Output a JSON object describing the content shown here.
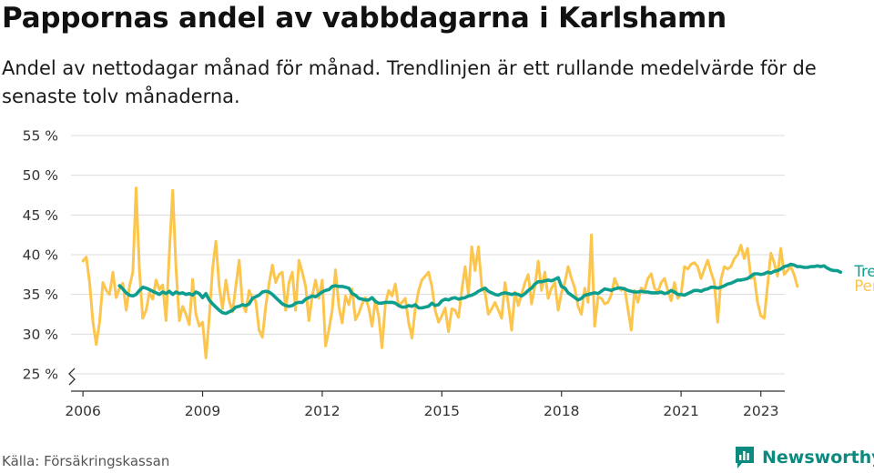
{
  "title": "Pappornas andel av vabbdagarna i Karlshamn",
  "subtitle": "Andel av nettodagar månad för månad. Trendlinjen är ett rullande medelvärde för de senaste tolv månaderna.",
  "source": "Källa: Försäkringskassan",
  "brand": "Newsworthy",
  "colors": {
    "trend": "#0e9e8e",
    "monthly": "#fcc54d",
    "brand": "#0b8a80"
  },
  "chart_data": {
    "type": "line",
    "ylim": [
      25,
      55
    ],
    "yticks": [
      25,
      30,
      35,
      40,
      45,
      50,
      55
    ],
    "ytick_labels": [
      "25 %",
      "30 %",
      "35 %",
      "40 %",
      "45 %",
      "50 %",
      "55 %"
    ],
    "xlim": [
      2005.7,
      2023.6
    ],
    "xticks": [
      2006,
      2009,
      2012,
      2015,
      2018,
      2021,
      2023
    ],
    "xtick_labels": [
      "2006",
      "2009",
      "2012",
      "2015",
      "2018",
      "2021",
      "2023"
    ],
    "grid": true,
    "series": [
      {
        "name": "Per månad",
        "start": 2006.0,
        "step": 0.0833333,
        "values": [
          39.2,
          39.7,
          36.5,
          31.5,
          28.7,
          31.5,
          36.5,
          35.5,
          35.0,
          37.8,
          34.6,
          35.8,
          36.4,
          33.0,
          36.0,
          37.8,
          48.4,
          38.0,
          32.0,
          33.0,
          35.2,
          34.4,
          36.8,
          35.6,
          36.2,
          31.7,
          40.2,
          48.1,
          38.4,
          31.7,
          33.5,
          32.5,
          31.2,
          36.9,
          32.5,
          31.0,
          31.5,
          27.0,
          32.0,
          38.2,
          41.7,
          36.0,
          33.2,
          36.8,
          34.2,
          32.8,
          36.0,
          39.3,
          33.8,
          32.8,
          35.5,
          34.5,
          34.2,
          30.5,
          29.6,
          33.5,
          36.3,
          38.7,
          36.5,
          37.5,
          37.8,
          33.0,
          36.5,
          37.8,
          33.0,
          39.3,
          37.8,
          36.0,
          31.7,
          34.8,
          36.8,
          34.5,
          36.8,
          28.5,
          30.5,
          33.0,
          38.1,
          33.5,
          31.4,
          34.8,
          33.7,
          35.7,
          31.8,
          32.6,
          33.8,
          34.6,
          33.3,
          31.0,
          34.3,
          32.2,
          28.3,
          33.8,
          35.5,
          34.8,
          36.3,
          33.5,
          34.0,
          34.5,
          31.5,
          29.5,
          33.2,
          35.5,
          36.8,
          37.3,
          37.8,
          36.0,
          33.0,
          31.5,
          32.3,
          33.3,
          30.3,
          33.2,
          33.0,
          32.1,
          35.5,
          38.5,
          35.0,
          41.0,
          38.0,
          41.0,
          36.0,
          35.2,
          32.5,
          33.2,
          34.0,
          33.0,
          32.0,
          36.5,
          33.8,
          30.5,
          35.3,
          33.6,
          35.0,
          36.5,
          37.5,
          33.8,
          36.0,
          39.2,
          35.5,
          37.8,
          34.5,
          35.8,
          36.5,
          33.0,
          35.2,
          36.5,
          38.5,
          37.0,
          35.8,
          33.5,
          32.5,
          35.8,
          34.0,
          42.5,
          31.0,
          34.7,
          34.5,
          33.8,
          34.0,
          35.0,
          37.0,
          36.0,
          35.5,
          35.8,
          33.2,
          30.5,
          35.5,
          34.0,
          35.8,
          35.5,
          37.0,
          37.6,
          35.8,
          35.3,
          36.5,
          37.0,
          35.5,
          34.2,
          36.5,
          34.5,
          35.0,
          38.5,
          38.2,
          38.8,
          39.0,
          38.5,
          37.0,
          38.2,
          39.3,
          37.8,
          36.5,
          31.5,
          36.9,
          38.5,
          38.2,
          38.5,
          39.5,
          40.0,
          41.2,
          39.5,
          40.8,
          37.0,
          37.3,
          34.0,
          32.3,
          32.0,
          36.0,
          40.2,
          39.0,
          37.3,
          40.8,
          37.5,
          38.0,
          38.5,
          37.5,
          36.0
        ]
      },
      {
        "name": "Trend",
        "start": 2006.9167,
        "step": 0.0833333,
        "values": [
          36.1,
          35.7,
          35.2,
          34.9,
          34.8,
          35.0,
          35.5,
          35.9,
          35.8,
          35.6,
          35.4,
          35.2,
          35.0,
          35.3,
          35.1,
          35.4,
          35.0,
          35.3,
          35.1,
          35.2,
          35.0,
          35.1,
          34.9,
          35.3,
          35.1,
          34.6,
          35.1,
          34.3,
          33.8,
          33.4,
          33.0,
          32.7,
          32.6,
          32.8,
          33.0,
          33.4,
          33.5,
          33.7,
          33.6,
          33.8,
          34.5,
          34.7,
          34.9,
          35.3,
          35.4,
          35.3,
          35.0,
          34.6,
          34.2,
          33.8,
          33.6,
          33.5,
          33.6,
          33.9,
          34.0,
          34.0,
          34.4,
          34.6,
          34.8,
          34.7,
          35.0,
          35.3,
          35.5,
          35.6,
          36.0,
          36.1,
          36.0,
          36.0,
          35.9,
          35.8,
          35.1,
          34.9,
          34.5,
          34.4,
          34.3,
          34.3,
          34.6,
          34.1,
          33.9,
          33.9,
          34.0,
          34.0,
          34.0,
          33.9,
          33.6,
          33.4,
          33.4,
          33.6,
          33.5,
          33.7,
          33.3,
          33.3,
          33.4,
          33.5,
          33.9,
          33.6,
          33.7,
          34.2,
          34.4,
          34.3,
          34.5,
          34.6,
          34.4,
          34.5,
          34.6,
          34.8,
          34.9,
          35.1,
          35.4,
          35.6,
          35.8,
          35.4,
          35.2,
          35.0,
          34.9,
          35.1,
          35.2,
          35.1,
          35.0,
          35.1,
          35.0,
          34.8,
          35.1,
          35.5,
          35.8,
          36.3,
          36.6,
          36.6,
          36.7,
          36.8,
          36.7,
          36.9,
          37.1,
          36.0,
          35.8,
          35.2,
          34.9,
          34.6,
          34.3,
          34.5,
          34.9,
          35.0,
          35.1,
          35.2,
          35.1,
          35.4,
          35.7,
          35.6,
          35.5,
          35.7,
          35.8,
          35.8,
          35.7,
          35.5,
          35.4,
          35.3,
          35.3,
          35.4,
          35.3,
          35.3,
          35.2,
          35.2,
          35.2,
          35.3,
          35.1,
          35.2,
          35.5,
          35.3,
          35.0,
          35.0,
          34.9,
          35.1,
          35.3,
          35.5,
          35.5,
          35.4,
          35.6,
          35.7,
          35.9,
          35.9,
          35.8,
          35.9,
          36.1,
          36.3,
          36.4,
          36.6,
          36.8,
          36.8,
          36.9,
          37.0,
          37.3,
          37.6,
          37.6,
          37.5,
          37.6,
          37.8,
          37.7,
          37.9,
          38.0,
          38.2,
          38.5,
          38.6,
          38.8,
          38.7,
          38.5,
          38.5,
          38.4,
          38.4,
          38.5,
          38.5,
          38.6,
          38.5,
          38.6,
          38.3,
          38.1,
          38.0,
          38.0,
          37.8
        ]
      }
    ]
  }
}
